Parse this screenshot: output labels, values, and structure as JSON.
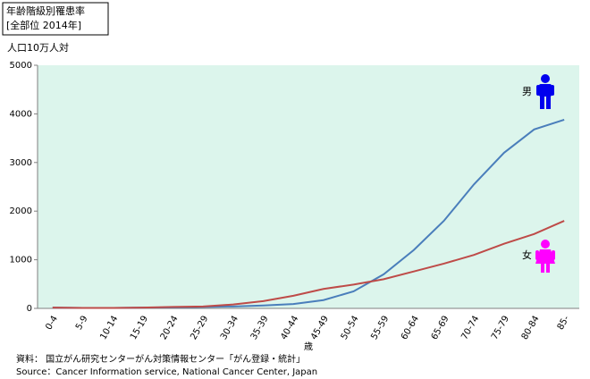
{
  "chart_data": {
    "type": "line",
    "title": "年齢階級別罹患率",
    "subtitle": "[全部位 2014年]",
    "y_label": "人口10万人対",
    "x_label": "歳",
    "categories": [
      "0-4",
      "5-9",
      "10-14",
      "15-19",
      "20-24",
      "25-29",
      "30-34",
      "35-39",
      "40-44",
      "45-49",
      "50-54",
      "55-59",
      "60-64",
      "65-69",
      "70-74",
      "75-79",
      "80-84",
      "85-"
    ],
    "series": [
      {
        "name": "男",
        "color": "#4a7ebb",
        "values": [
          15,
          10,
          10,
          15,
          20,
          30,
          40,
          60,
          90,
          170,
          350,
          700,
          1200,
          1800,
          2550,
          3200,
          3680,
          3880
        ]
      },
      {
        "name": "女",
        "color": "#be4b48",
        "values": [
          15,
          10,
          10,
          15,
          30,
          40,
          80,
          150,
          260,
          400,
          490,
          600,
          760,
          920,
          1100,
          1330,
          1530,
          1800
        ]
      }
    ],
    "ylim": [
      0,
      5000
    ],
    "yticks": [
      0,
      1000,
      2000,
      3000,
      4000,
      5000
    ],
    "grid": false,
    "plot_background": "#dcf5ec",
    "notes": [
      "資料： 国立がん研究センターがん対策情報センター「がん登録・統計」",
      "Source：Cancer Information service, National Cancer Center, Japan"
    ]
  }
}
